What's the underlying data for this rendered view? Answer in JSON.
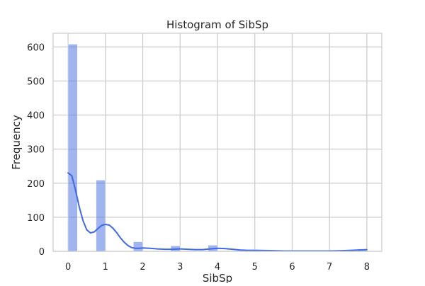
{
  "chart_data": {
    "type": "bar",
    "title": "Histogram of SibSp",
    "xlabel": "SibSp",
    "ylabel": "Frequency",
    "xlim": [
      -0.4,
      8.4
    ],
    "ylim": [
      0,
      640
    ],
    "x_ticks": [
      0,
      1,
      2,
      3,
      4,
      5,
      6,
      7,
      8
    ],
    "y_ticks": [
      0,
      100,
      200,
      300,
      400,
      500,
      600
    ],
    "grid": true,
    "legend": "none",
    "bins": [
      {
        "x0": 0.0,
        "x1": 0.25,
        "count": 608
      },
      {
        "x0": 0.75,
        "x1": 1.0,
        "count": 209
      },
      {
        "x0": 1.75,
        "x1": 2.0,
        "count": 28
      },
      {
        "x0": 2.75,
        "x1": 3.0,
        "count": 16
      },
      {
        "x0": 3.75,
        "x1": 4.0,
        "count": 18
      },
      {
        "x0": 4.75,
        "x1": 5.0,
        "count": 5
      },
      {
        "x0": 7.75,
        "x1": 8.0,
        "count": 7
      }
    ],
    "kde": {
      "x": [
        0.0,
        0.1,
        0.2,
        0.3,
        0.4,
        0.5,
        0.6,
        0.7,
        0.8,
        0.9,
        1.0,
        1.1,
        1.2,
        1.3,
        1.4,
        1.5,
        1.6,
        1.7,
        1.8,
        1.9,
        2.0,
        2.2,
        2.4,
        2.6,
        2.8,
        3.0,
        3.2,
        3.4,
        3.6,
        3.8,
        4.0,
        4.2,
        4.4,
        4.6,
        4.8,
        5.0,
        5.4,
        5.8,
        6.2,
        6.6,
        7.0,
        7.4,
        7.8,
        8.0
      ],
      "y": [
        230,
        222,
        180,
        130,
        90,
        63,
        54,
        57,
        67,
        76,
        79,
        77,
        68,
        55,
        40,
        27,
        17,
        11,
        9,
        9,
        10,
        9,
        7,
        6,
        6,
        7,
        6,
        5,
        5,
        7,
        9,
        8,
        6,
        4,
        3,
        3,
        2,
        1,
        1,
        1,
        1,
        2,
        4,
        5
      ]
    },
    "colors": {
      "bar_fill": "#4169e1",
      "bar_opacity": 0.5,
      "kde_line": "#4169e1",
      "grid": "#cccccc",
      "spine": "#cccccc",
      "text": "#262626"
    }
  }
}
